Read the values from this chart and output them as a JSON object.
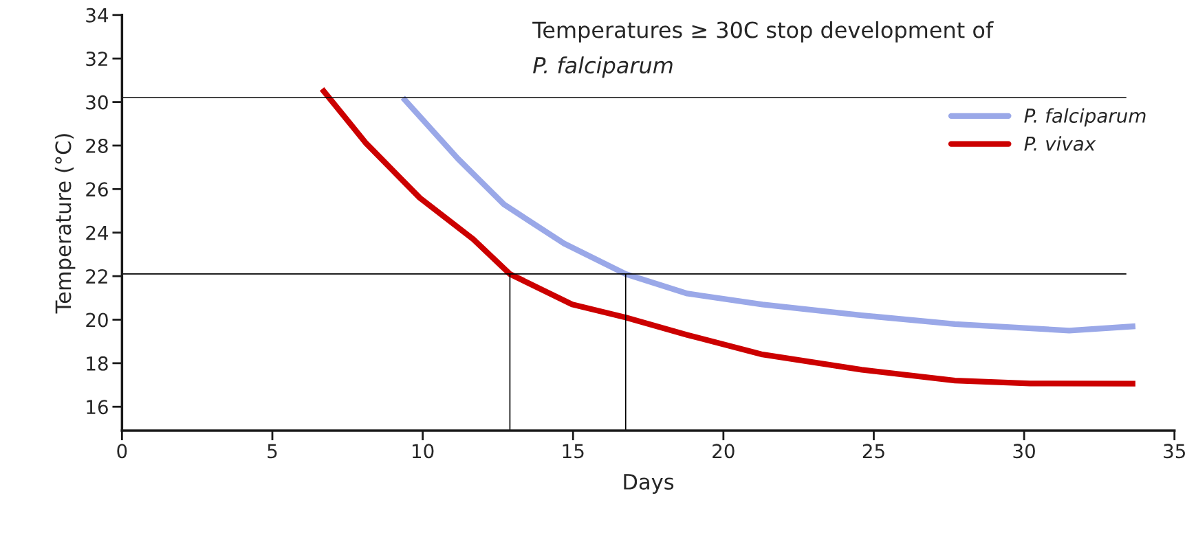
{
  "chart_data": {
    "type": "line",
    "xlabel": "Days",
    "ylabel": "Temperature (°C)",
    "annotations": [
      "Temperatures ≥ 30C stop development of",
      "P. falciparum"
    ],
    "xlim": [
      0,
      35
    ],
    "xticks": [
      0,
      5,
      10,
      15,
      20,
      25,
      30,
      35
    ],
    "ylim": [
      14.9,
      34
    ],
    "yticks": [
      16,
      18,
      20,
      22,
      24,
      26,
      28,
      30,
      32,
      34
    ],
    "grid": false,
    "legend": "right",
    "line_style": "solid",
    "marker": "none",
    "series": [
      {
        "name": "P. falciparum",
        "color": "#9aa8e8",
        "x": [
          9.34,
          11.17,
          12.7,
          14.7,
          16.75,
          18.8,
          21.3,
          24.6,
          27.7,
          31.5,
          33.7
        ],
        "values": [
          30.2,
          27.4,
          25.3,
          23.5,
          22.1,
          21.2,
          20.7,
          20.2,
          19.8,
          19.5,
          19.7
        ]
      },
      {
        "name": "P. vivax",
        "color": "#cc0000",
        "x": [
          6.65,
          8.12,
          9.9,
          11.68,
          12.9,
          14.97,
          16.75,
          18.8,
          21.3,
          24.6,
          27.7,
          30.2,
          33.7
        ],
        "values": [
          30.6,
          28.1,
          25.6,
          23.7,
          22.1,
          20.7,
          20.1,
          19.3,
          18.4,
          17.7,
          17.2,
          17.07,
          17.06
        ]
      },
      {
        "color": "#000000",
        "x": [
          0,
          33.4
        ],
        "values": [
          30.2,
          30.2
        ]
      },
      {
        "color": "#000000",
        "x": [
          0,
          33.4
        ],
        "values": [
          22.1,
          22.1
        ]
      },
      {
        "color": "#000000",
        "x": [
          12.9,
          12.9
        ],
        "values": [
          14.9,
          22.1
        ]
      },
      {
        "color": "#000000",
        "x": [
          16.75,
          16.75
        ],
        "values": [
          14.9,
          22.1
        ]
      }
    ]
  }
}
